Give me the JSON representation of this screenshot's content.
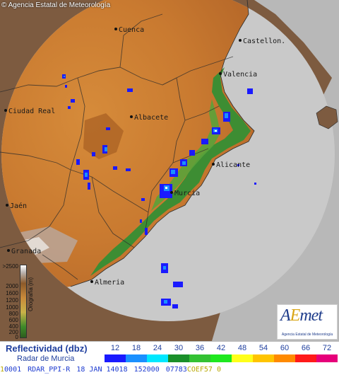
{
  "copyright": "© Agencia Estatal de Meteorología",
  "cities": [
    {
      "key": "cuenca",
      "name": "Cuenca"
    },
    {
      "key": "castellon",
      "name": "Castellon."
    },
    {
      "key": "valencia",
      "name": "Valencia"
    },
    {
      "key": "ciudad_real",
      "name": "Ciudad Real"
    },
    {
      "key": "albacete",
      "name": "Albacete"
    },
    {
      "key": "alicante",
      "name": "Alicante"
    },
    {
      "key": "murcia",
      "name": "Murcia"
    },
    {
      "key": "jaen",
      "name": "Jaén"
    },
    {
      "key": "granada",
      "name": "Granada"
    },
    {
      "key": "almeria",
      "name": "Almeria"
    }
  ],
  "orography": {
    "title": "Orografía (m)",
    "ticks": [
      ">2500",
      "2000",
      "1600",
      "1200",
      "1000",
      "800",
      "600",
      "400",
      "200",
      "0"
    ]
  },
  "logo": {
    "text_a": "A",
    "text_e": "E",
    "text_rest": "met",
    "subtitle": "Agencia Estatal de Meteorología"
  },
  "legend": {
    "title": "Reflectividad (dbz)",
    "subtitle": "Radar de Murcia",
    "levels": [
      {
        "value": "12",
        "color": "#1a1aff"
      },
      {
        "value": "18",
        "color": "#1a90ff"
      },
      {
        "value": "24",
        "color": "#00e8ff"
      },
      {
        "value": "30",
        "color": "#1a8f2a"
      },
      {
        "value": "36",
        "color": "#33c133"
      },
      {
        "value": "42",
        "color": "#1fe81f"
      },
      {
        "value": "48",
        "color": "#ffff1a"
      },
      {
        "value": "54",
        "color": "#ffc400"
      },
      {
        "value": "60",
        "color": "#ff8a00"
      },
      {
        "value": "66",
        "color": "#ff1a1a"
      },
      {
        "value": "72",
        "color": "#e6007a"
      }
    ]
  },
  "status": {
    "prefix": "1",
    "code": "0001",
    "product": "RDAR_PPI-R",
    "date": "18 JAN 14018",
    "time": "152000",
    "id": "07783",
    "suffix": "COEF57 0"
  }
}
